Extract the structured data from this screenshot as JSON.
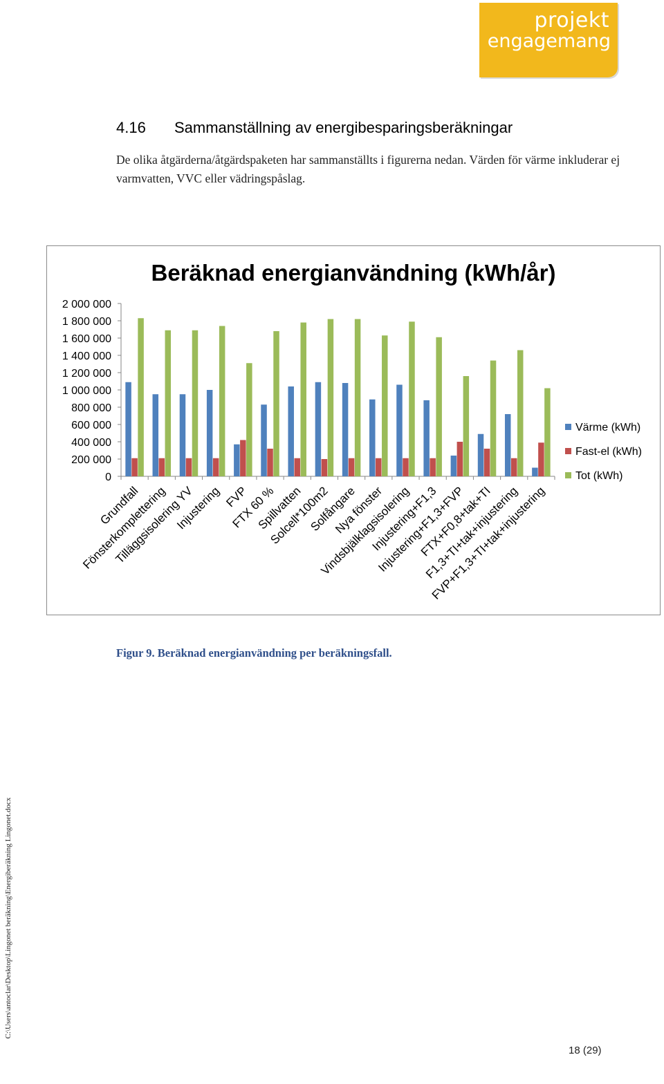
{
  "logo": {
    "line1": "projekt",
    "line2": "engagemang"
  },
  "heading": {
    "number": "4.16",
    "title": "Sammanställning av energibesparingsberäkningar"
  },
  "intro": "De olika åtgärderna/åtgärdspaketen har sammanställts i figurerna nedan. Värden för värme inkluderar ej varmvatten, VVC eller vädringspåslag.",
  "caption": "Figur 9. Beräknad energianvändning per beräkningsfall.",
  "side_path": "C:\\Users\\antoclar\\Desktop\\Lingonet beräkning\\Energiberäkning Lingonet.docx",
  "page_number": "18 (29)",
  "chart_data": {
    "type": "bar",
    "title": "Beräknad energianvändning (kWh/år)",
    "ylim": [
      0,
      2000000
    ],
    "yticks": [
      0,
      200000,
      400000,
      600000,
      800000,
      1000000,
      1200000,
      1400000,
      1600000,
      1800000,
      2000000
    ],
    "ytick_labels": [
      "0",
      "200 000",
      "400 000",
      "600 000",
      "800 000",
      "1 000 000",
      "1 200 000",
      "1 400 000",
      "1 600 000",
      "1 800 000",
      "2 000 000"
    ],
    "legend_position": "right",
    "categories": [
      "Grundfall",
      "Fönsterkomplettering",
      "Tilläggsisolering YV",
      "Injustering",
      "FVP",
      "FTX 60 %",
      "Spillvatten",
      "Solcell*100m2",
      "Solfångare",
      "Nya fönster",
      "Vindsbjälklagsisolering",
      "Injustering+F1,3",
      "Injustering+F1,3+FVP",
      "FTX+F0,8+tak+TI",
      "F1,3+TI+tak+injustering",
      "FVP+F1,3+TI+tak+injustering"
    ],
    "series": [
      {
        "name": "Värme (kWh)",
        "color": "#4f81bd",
        "values": [
          1090000,
          950000,
          950000,
          1000000,
          370000,
          830000,
          1040000,
          1090000,
          1080000,
          890000,
          1060000,
          880000,
          240000,
          490000,
          720000,
          100000
        ]
      },
      {
        "name": "Fast-el (kWh)",
        "color": "#c0504d",
        "values": [
          210000,
          210000,
          210000,
          210000,
          420000,
          320000,
          210000,
          200000,
          210000,
          210000,
          210000,
          210000,
          400000,
          320000,
          210000,
          390000
        ]
      },
      {
        "name": "Tot (kWh)",
        "color": "#9bbb59",
        "values": [
          1830000,
          1690000,
          1690000,
          1740000,
          1310000,
          1680000,
          1780000,
          1820000,
          1820000,
          1630000,
          1790000,
          1610000,
          1160000,
          1340000,
          1460000,
          1020000
        ]
      }
    ]
  }
}
